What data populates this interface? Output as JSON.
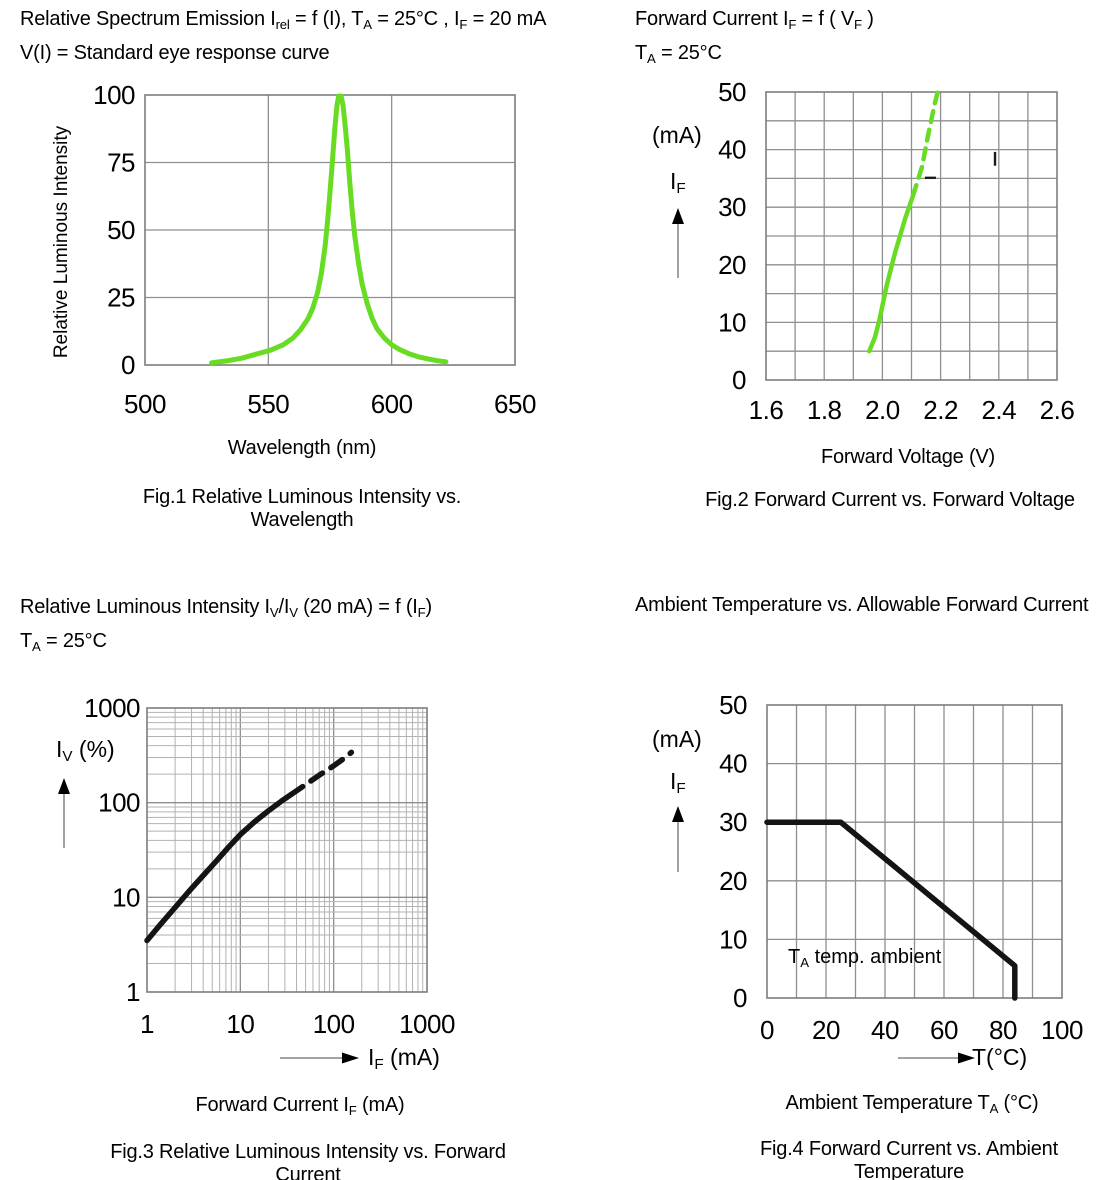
{
  "chart_data": [
    {
      "id": "fig1",
      "type": "line",
      "title_lines": [
        "Relative Spectrum Emission I~rel~ = f (I), T~A~ = 25°C , I~F~ = 20 mA",
        "V(I) = Standard eye response curve"
      ],
      "caption": "Fig.1 Relative Luminous Intensity vs. Wavelength",
      "xlabel": "Wavelength (nm)",
      "ylabel": "Relative Luminous Intensity",
      "x_range": [
        500,
        650
      ],
      "y_range": [
        0,
        100
      ],
      "x_grid_step": 50,
      "y_grid_step": 25,
      "grid": true,
      "legend": "none",
      "x_ticks": [
        500,
        550,
        600,
        650
      ],
      "x_tick_labels": [
        "500",
        "550",
        "600",
        "650"
      ],
      "y_ticks": [
        0,
        25,
        50,
        75,
        100
      ],
      "y_tick_labels": [
        "0",
        "25",
        "50",
        "75",
        "100"
      ],
      "series": [
        {
          "name": "relative spectrum emission",
          "color": "#67DC23",
          "width": 5,
          "dash_from": null,
          "points": [
            [
              527,
              0.8
            ],
            [
              533,
              1.5
            ],
            [
              539,
              2.5
            ],
            [
              545,
              4
            ],
            [
              551,
              5.5
            ],
            [
              556,
              7.5
            ],
            [
              560,
              10
            ],
            [
              563,
              13
            ],
            [
              566,
              17
            ],
            [
              568,
              21
            ],
            [
              570,
              27
            ],
            [
              571.5,
              34
            ],
            [
              573,
              44
            ],
            [
              574,
              53
            ],
            [
              575,
              64
            ],
            [
              576,
              76
            ],
            [
              577,
              88
            ],
            [
              577.8,
              96
            ],
            [
              578.5,
              99.6
            ],
            [
              579.5,
              99.6
            ],
            [
              580.3,
              96
            ],
            [
              581,
              90
            ],
            [
              582,
              80
            ],
            [
              583,
              68
            ],
            [
              584,
              57
            ],
            [
              585,
              48
            ],
            [
              586.5,
              38
            ],
            [
              588,
              30
            ],
            [
              590,
              23
            ],
            [
              592,
              17.5
            ],
            [
              594,
              13.5
            ],
            [
              597,
              10
            ],
            [
              600,
              7.5
            ],
            [
              603,
              5.8
            ],
            [
              607,
              4.2
            ],
            [
              611,
              3
            ],
            [
              615,
              2.2
            ],
            [
              619,
              1.5
            ],
            [
              622,
              1.2
            ]
          ]
        }
      ]
    },
    {
      "id": "fig2",
      "type": "line",
      "title_lines": [
        "Forward Current I~F~ = f ( V~F~ )",
        "T~A~ = 25°C"
      ],
      "caption": "Fig.2 Forward Current vs. Forward Voltage",
      "xlabel": "Forward Voltage (V)",
      "y_unit": "(mA)",
      "y_symbol": "I~F~",
      "x_range": [
        1.6,
        2.6
      ],
      "y_range": [
        0,
        50
      ],
      "x_grid_step": 0.1,
      "y_grid_step": 5,
      "grid": true,
      "legend": "none",
      "x_ticks": [
        1.6,
        1.8,
        2.0,
        2.2,
        2.4,
        2.6
      ],
      "x_tick_labels": [
        "1.6",
        "1.8",
        "2.0",
        "2.2",
        "2.4",
        "2.6"
      ],
      "y_ticks": [
        0,
        10,
        20,
        30,
        40,
        50
      ],
      "y_tick_labels": [
        "0",
        "10",
        "20",
        "30",
        "40",
        "50"
      ],
      "series": [
        {
          "name": "forward current",
          "color": "#67DC23",
          "width": 4.5,
          "dash_from": 2.105,
          "dash": "11 8",
          "points": [
            [
              1.955,
              5
            ],
            [
              1.975,
              7.5
            ],
            [
              1.99,
              10.5
            ],
            [
              2.015,
              16.5
            ],
            [
              2.043,
              22
            ],
            [
              2.078,
              28
            ],
            [
              2.105,
              32
            ],
            [
              2.136,
              37
            ],
            [
              2.157,
              42.5
            ],
            [
              2.18,
              48
            ],
            [
              2.19,
              50
            ]
          ]
        }
      ],
      "artifacts": [
        {
          "type": "vline",
          "x": 2.387,
          "y1": 37.2,
          "y2": 39.6
        },
        {
          "type": "hline",
          "y": 35.1,
          "x1": 2.146,
          "x2": 2.184
        }
      ]
    },
    {
      "id": "fig3",
      "type": "line",
      "title_lines": [
        "Relative Luminous Intensity I~V~/I~V~ (20 mA) = f (I~F~)",
        "T~A~ = 25°C"
      ],
      "caption": "Fig.3 Relative Luminous Intensity vs. Forward Current",
      "xlabel": "Forward Current I~F~ (mA)",
      "x_arrow_label": "I~F~ (mA)",
      "y_symbol": "I~V~ (%)",
      "x_log": true,
      "y_log": true,
      "x_range": [
        1,
        1000
      ],
      "y_range": [
        1,
        1000
      ],
      "grid": true,
      "legend": "none",
      "x_ticks": [
        1,
        10,
        100,
        1000
      ],
      "x_tick_labels": [
        "1",
        "10",
        "100",
        "1000"
      ],
      "y_ticks": [
        1,
        10,
        100,
        1000
      ],
      "y_tick_labels": [
        "1",
        "10",
        "100",
        "1000"
      ],
      "series": [
        {
          "name": "relative luminous intensity",
          "color": "#141414",
          "width": 5.5,
          "dash_from": 35,
          "dash": "14 10",
          "points": [
            [
              1,
              3.5
            ],
            [
              1.4,
              5.2
            ],
            [
              2,
              7.8
            ],
            [
              2.8,
              11.5
            ],
            [
              4,
              17
            ],
            [
              5.5,
              24
            ],
            [
              7.5,
              34
            ],
            [
              10,
              46
            ],
            [
              14,
              62
            ],
            [
              20,
              82
            ],
            [
              28,
              105
            ],
            [
              35,
              122
            ],
            [
              50,
              155
            ],
            [
              70,
              195
            ],
            [
              100,
              245
            ],
            [
              130,
              295
            ],
            [
              155,
              340
            ]
          ]
        }
      ]
    },
    {
      "id": "fig4",
      "type": "line",
      "title_lines": [
        "Ambient Temperature vs. Allowable Forward Current"
      ],
      "caption": "Fig.4 Forward Current vs. Ambient Temperature",
      "xlabel": "Ambient Temperature T~A~ (°C)",
      "x_arrow_label": "T(°C)",
      "y_unit": "(mA)",
      "y_symbol": "I~F~",
      "annotation": "T~A~ temp. ambient",
      "x_range": [
        0,
        100
      ],
      "y_range": [
        0,
        50
      ],
      "x_grid_step": 10,
      "y_grid_step": 10,
      "grid": true,
      "legend": "none",
      "x_ticks": [
        0,
        20,
        40,
        60,
        80,
        100
      ],
      "x_tick_labels": [
        "0",
        "20",
        "40",
        "60",
        "80",
        "100"
      ],
      "y_ticks": [
        0,
        10,
        20,
        30,
        40,
        50
      ],
      "y_tick_labels": [
        "0",
        "10",
        "20",
        "30",
        "40",
        "50"
      ],
      "series": [
        {
          "name": "allowable forward current derating",
          "color": "#141414",
          "width": 5.5,
          "dash_from": null,
          "points": [
            [
              0,
              30
            ],
            [
              25,
              30
            ],
            [
              84,
              5.5
            ],
            [
              84,
              0
            ]
          ]
        }
      ]
    }
  ]
}
